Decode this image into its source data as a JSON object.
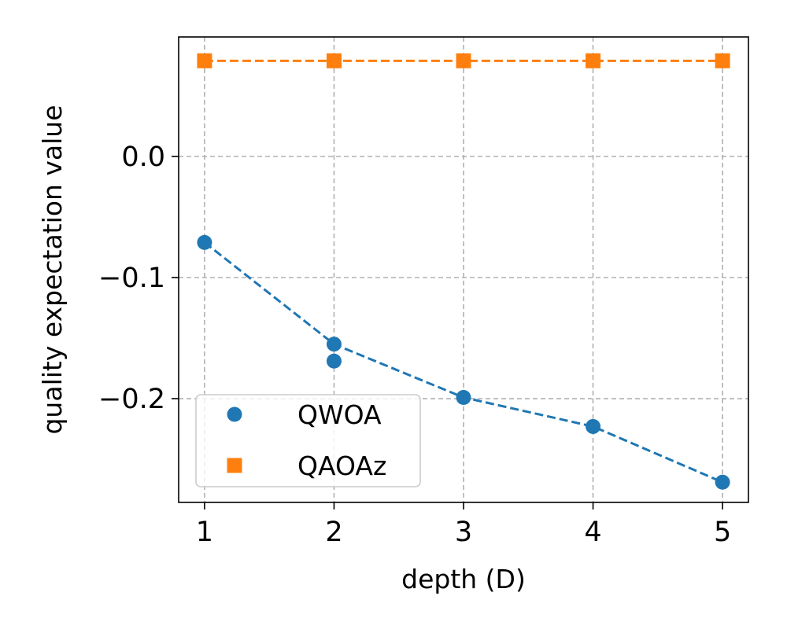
{
  "chart_data": {
    "type": "line",
    "title": "",
    "xlabel": "depth (D)",
    "ylabel": "quality expectation value",
    "xlim": [
      0.8,
      5.2
    ],
    "ylim": [
      -0.2857,
      0.0987
    ],
    "xticks": [
      1,
      2,
      3,
      4,
      5
    ],
    "xtick_labels": [
      "1",
      "2",
      "3",
      "4",
      "5"
    ],
    "yticks": [
      0.0,
      -0.1,
      -0.2
    ],
    "ytick_labels": [
      "0.0",
      "−0.1",
      "−0.2"
    ],
    "grid": true,
    "legend_position": "lower-left",
    "series": [
      {
        "name": "QWOA",
        "color": "#1f77b4",
        "marker": "circle",
        "line_style": "dashed",
        "line_x": [
          1,
          2,
          3,
          4,
          5
        ],
        "line_y": [
          -0.071,
          -0.155,
          -0.199,
          -0.223,
          -0.269
        ],
        "points": [
          {
            "x": 1,
            "y": -0.071
          },
          {
            "x": 2,
            "y": -0.155
          },
          {
            "x": 2,
            "y": -0.169
          },
          {
            "x": 3,
            "y": -0.199
          },
          {
            "x": 4,
            "y": -0.223
          },
          {
            "x": 5,
            "y": -0.269
          }
        ]
      },
      {
        "name": "QAOAz",
        "color": "#ff7f0e",
        "marker": "square",
        "line_style": "dashed",
        "line_x": [
          1,
          2,
          3,
          4,
          5
        ],
        "line_y": [
          0.079,
          0.079,
          0.079,
          0.079,
          0.079
        ],
        "points": [
          {
            "x": 1,
            "y": 0.079
          },
          {
            "x": 2,
            "y": 0.079
          },
          {
            "x": 3,
            "y": 0.079
          },
          {
            "x": 4,
            "y": 0.079
          },
          {
            "x": 5,
            "y": 0.079
          }
        ]
      }
    ]
  }
}
